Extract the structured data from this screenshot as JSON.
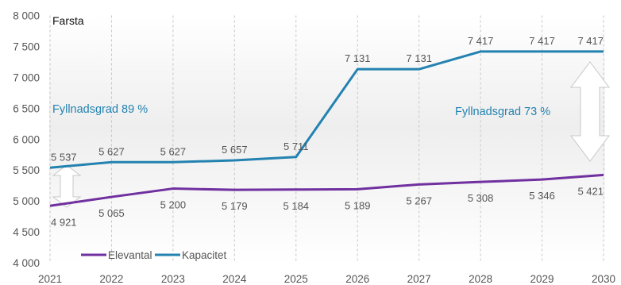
{
  "chart_data": {
    "type": "line",
    "title": "Farsta",
    "xlabel": "",
    "ylabel": "",
    "x": [
      "2021",
      "2022",
      "2023",
      "2024",
      "2025",
      "2026",
      "2027",
      "2028",
      "2029",
      "2030"
    ],
    "ylim": [
      4000,
      8000
    ],
    "yticks": [
      "4 000",
      "4 500",
      "5 000",
      "5 500",
      "6 000",
      "6 500",
      "7 000",
      "7 500",
      "8 000"
    ],
    "grid": "vertical dashed",
    "legend_position": "bottom-left",
    "series": [
      {
        "name": "Elevantal",
        "color": "#7030a0",
        "values": [
          4921,
          5065,
          5200,
          5179,
          5184,
          5189,
          5267,
          5308,
          5346,
          5421
        ],
        "labels": [
          "4 921",
          "5 065",
          "5 200",
          "5 179",
          "5 184",
          "5 189",
          "5 267",
          "5 308",
          "5 346",
          "5 421"
        ]
      },
      {
        "name": "Kapacitet",
        "color": "#2382b0",
        "values": [
          5537,
          5627,
          5627,
          5657,
          5711,
          7131,
          7131,
          7417,
          7417,
          7417
        ],
        "labels": [
          "5 537",
          "5 627",
          "5 627",
          "5 657",
          "5 711",
          "7 131",
          "7 131",
          "7 417",
          "7 417",
          "7 417"
        ]
      }
    ],
    "annotations": [
      {
        "text": "Fyllnadsgrad 89 %",
        "color": "#2382b0"
      },
      {
        "text": "Fyllnadsgrad 73 %",
        "color": "#2382b0"
      }
    ]
  }
}
